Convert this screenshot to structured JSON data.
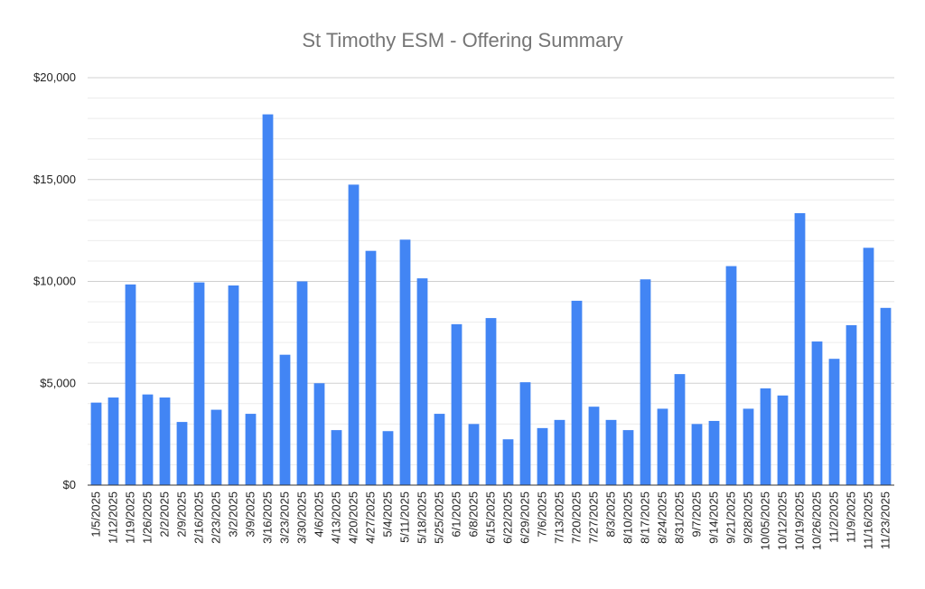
{
  "chart_data": {
    "type": "bar",
    "title": "St Timothy ESM - Offering Summary",
    "xlabel": "",
    "ylabel": "",
    "ylim": [
      0,
      20000
    ],
    "yticks": [
      0,
      5000,
      10000,
      15000,
      20000
    ],
    "ytick_labels": [
      "$0",
      "$5,000",
      "$10,000",
      "$15,000",
      "$20,000"
    ],
    "grid": true,
    "legend": "none",
    "bar_color": "#4285f4",
    "categories": [
      "1/5/2025",
      "1/12/2025",
      "1/19/2025",
      "1/26/2025",
      "2/2/2025",
      "2/9/2025",
      "2/16/2025",
      "2/23/2025",
      "3/2/2025",
      "3/9/2025",
      "3/16/2025",
      "3/23/2025",
      "3/30/2025",
      "4/6/2025",
      "4/13/2025",
      "4/20/2025",
      "4/27/2025",
      "5/4/2025",
      "5/11/2025",
      "5/18/2025",
      "5/25/2025",
      "6/1/2025",
      "6/8/2025",
      "6/15/2025",
      "6/22/2025",
      "6/29/2025",
      "7/6/2025",
      "7/13/2025",
      "7/20/2025",
      "7/27/2025",
      "8/3/2025",
      "8/10/2025",
      "8/17/2025",
      "8/24/2025",
      "8/31/2025",
      "9/7/2025",
      "9/14/2025",
      "9/21/2025",
      "9/28/2025",
      "10/05/2025",
      "10/12/2025",
      "10/19/2025",
      "10/26/2025",
      "11/2/2025",
      "11/9/2025",
      "11/16/2025",
      "11/23/2025"
    ],
    "values": [
      4050,
      4300,
      9850,
      4450,
      4300,
      3100,
      9950,
      3700,
      9800,
      3500,
      18200,
      6400,
      10000,
      5000,
      2700,
      14750,
      11500,
      2650,
      12050,
      10150,
      3500,
      7900,
      3000,
      8200,
      2250,
      5050,
      2800,
      3200,
      9050,
      3850,
      3200,
      2700,
      10100,
      3750,
      5450,
      3000,
      3150,
      10750,
      3750,
      4750,
      4400,
      13350,
      7050,
      6200,
      7850,
      11650,
      8700
    ]
  }
}
